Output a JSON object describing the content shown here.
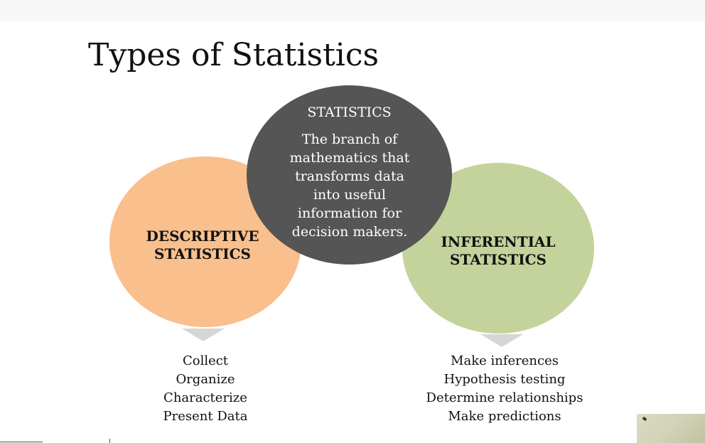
{
  "slide": {
    "title": "Types of Statistics"
  },
  "center_circle": {
    "heading": "STATISTICS",
    "lines": [
      "The branch of",
      "mathematics that",
      "transforms data",
      "into useful",
      "information for",
      "decision makers."
    ],
    "color": "#555555"
  },
  "left_circle": {
    "lines": [
      "DESCRIPTIVE",
      "STATISTICS"
    ],
    "color": "#f9bf8c",
    "items": [
      "Collect",
      "Organize",
      "Characterize",
      "Present Data"
    ]
  },
  "right_circle": {
    "lines": [
      "INFERENTIAL",
      "STATISTICS"
    ],
    "color": "#c3d39b",
    "items": [
      "Make inferences",
      "Hypothesis testing",
      "Determine relationships",
      "Make predictions"
    ]
  },
  "arrow_color": "#d6d6d6"
}
